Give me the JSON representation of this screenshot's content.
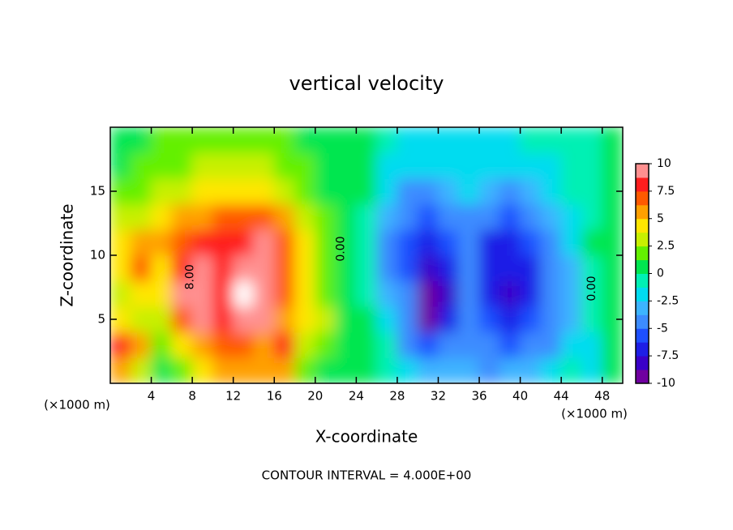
{
  "chart_data": {
    "type": "contour",
    "title": "vertical velocity",
    "xlabel": "X-coordinate",
    "ylabel": "Z-coordinate",
    "xunit": "(×1000 m)",
    "yunit": "(×1000 m)",
    "footer": "CONTOUR INTERVAL = 4.000E+00",
    "xlim": [
      0,
      50
    ],
    "ylim": [
      0,
      20
    ],
    "xticks": [
      4,
      8,
      12,
      16,
      20,
      24,
      28,
      32,
      36,
      40,
      44,
      48
    ],
    "yticks": [
      5,
      10,
      15
    ],
    "clim": [
      -10,
      10
    ],
    "cticks": [
      10,
      7.5,
      5,
      2.5,
      0,
      -2.5,
      -5,
      -7.5,
      -10
    ],
    "colors": [
      "#7000a0",
      "#3a00c8",
      "#1e1ee6",
      "#1e50ff",
      "#3c8cff",
      "#3cb4ff",
      "#00dcf0",
      "#00f0b4",
      "#00e650",
      "#64f000",
      "#c8f000",
      "#ffe600",
      "#ffa000",
      "#ff5a00",
      "#ff1e1e",
      "#ff9090"
    ],
    "over_color": "#ffffff",
    "x": [
      1,
      3,
      5,
      7,
      9,
      11,
      13,
      15,
      17,
      19,
      21,
      23,
      25,
      27,
      29,
      31,
      33,
      35,
      37,
      39,
      41,
      43,
      45,
      47,
      49
    ],
    "y": [
      1,
      3,
      5,
      7,
      9,
      11,
      13,
      15,
      17,
      19
    ],
    "z": [
      [
        6,
        3,
        1,
        2,
        4,
        6,
        5,
        5,
        6,
        2,
        1,
        0.5,
        0.5,
        -0.5,
        -2,
        -3,
        -3,
        -3,
        -4,
        -3,
        -3,
        -2,
        -1,
        -2,
        0
      ],
      [
        8,
        5,
        2,
        4,
        6,
        7,
        7,
        6,
        8,
        3,
        2,
        1,
        0.5,
        -1,
        -4,
        -6,
        -5,
        -4,
        -5,
        -6,
        -5,
        -4,
        -2,
        -2,
        0
      ],
      [
        4,
        3,
        3,
        7,
        9,
        8,
        10,
        9,
        6,
        4,
        3,
        1,
        0,
        -2,
        -5,
        -9,
        -7,
        -5,
        -6,
        -7,
        -6,
        -5,
        -3,
        -1,
        0
      ],
      [
        3,
        4,
        4,
        9,
        10,
        8,
        11,
        10,
        7,
        4,
        2,
        0.5,
        -1,
        -3,
        -5,
        -10,
        -8,
        -5,
        -7,
        -8,
        -7,
        -5,
        -3,
        -1,
        0.5
      ],
      [
        4,
        7,
        4,
        8,
        9.5,
        8,
        10,
        10,
        7,
        4,
        2,
        0.5,
        -1,
        -4,
        -6,
        -8,
        -7,
        -5,
        -7,
        -7.5,
        -6.5,
        -5,
        -3,
        -1,
        0.5
      ],
      [
        4,
        6,
        5,
        7,
        8,
        8.5,
        8,
        9,
        7,
        4,
        2,
        0.5,
        -1,
        -4,
        -6,
        -7,
        -6,
        -5,
        -6.5,
        -7,
        -6,
        -4,
        -2,
        0,
        1
      ],
      [
        3,
        3.5,
        4,
        5,
        6,
        7,
        7,
        6.5,
        5,
        3,
        1.5,
        0.5,
        -0.5,
        -3,
        -5,
        -6,
        -5,
        -4,
        -5,
        -6,
        -5,
        -3,
        -1.5,
        -0.5,
        0.5
      ],
      [
        1.5,
        2,
        2.5,
        3,
        4,
        4.5,
        4.5,
        4,
        3,
        2,
        1,
        0.5,
        0,
        -2,
        -4,
        -4,
        -3,
        -2.5,
        -3,
        -4,
        -3,
        -2,
        -1,
        -0.5,
        0.5
      ],
      [
        1,
        1.5,
        2,
        2,
        2.5,
        3,
        3,
        2.5,
        2,
        1.5,
        1,
        0.5,
        0,
        -1.5,
        -2,
        -2,
        -2,
        -2,
        -2,
        -2,
        -1.5,
        -1.5,
        -1,
        -0.5,
        0
      ],
      [
        1,
        1,
        1.5,
        1.5,
        2,
        2,
        2,
        2,
        1.5,
        1,
        0.5,
        0.5,
        0,
        -1,
        -1.5,
        -1.5,
        -1.5,
        -1.5,
        -1.5,
        -1.5,
        -1,
        -1,
        -1,
        -0.5,
        0
      ]
    ],
    "contour_labels": [
      {
        "text": "0.00",
        "x": 22.5,
        "y": 10.5
      },
      {
        "text": "8.00",
        "x": 7.8,
        "y": 8.3
      },
      {
        "text": "0.00",
        "x": 47,
        "y": 7.4
      }
    ]
  }
}
